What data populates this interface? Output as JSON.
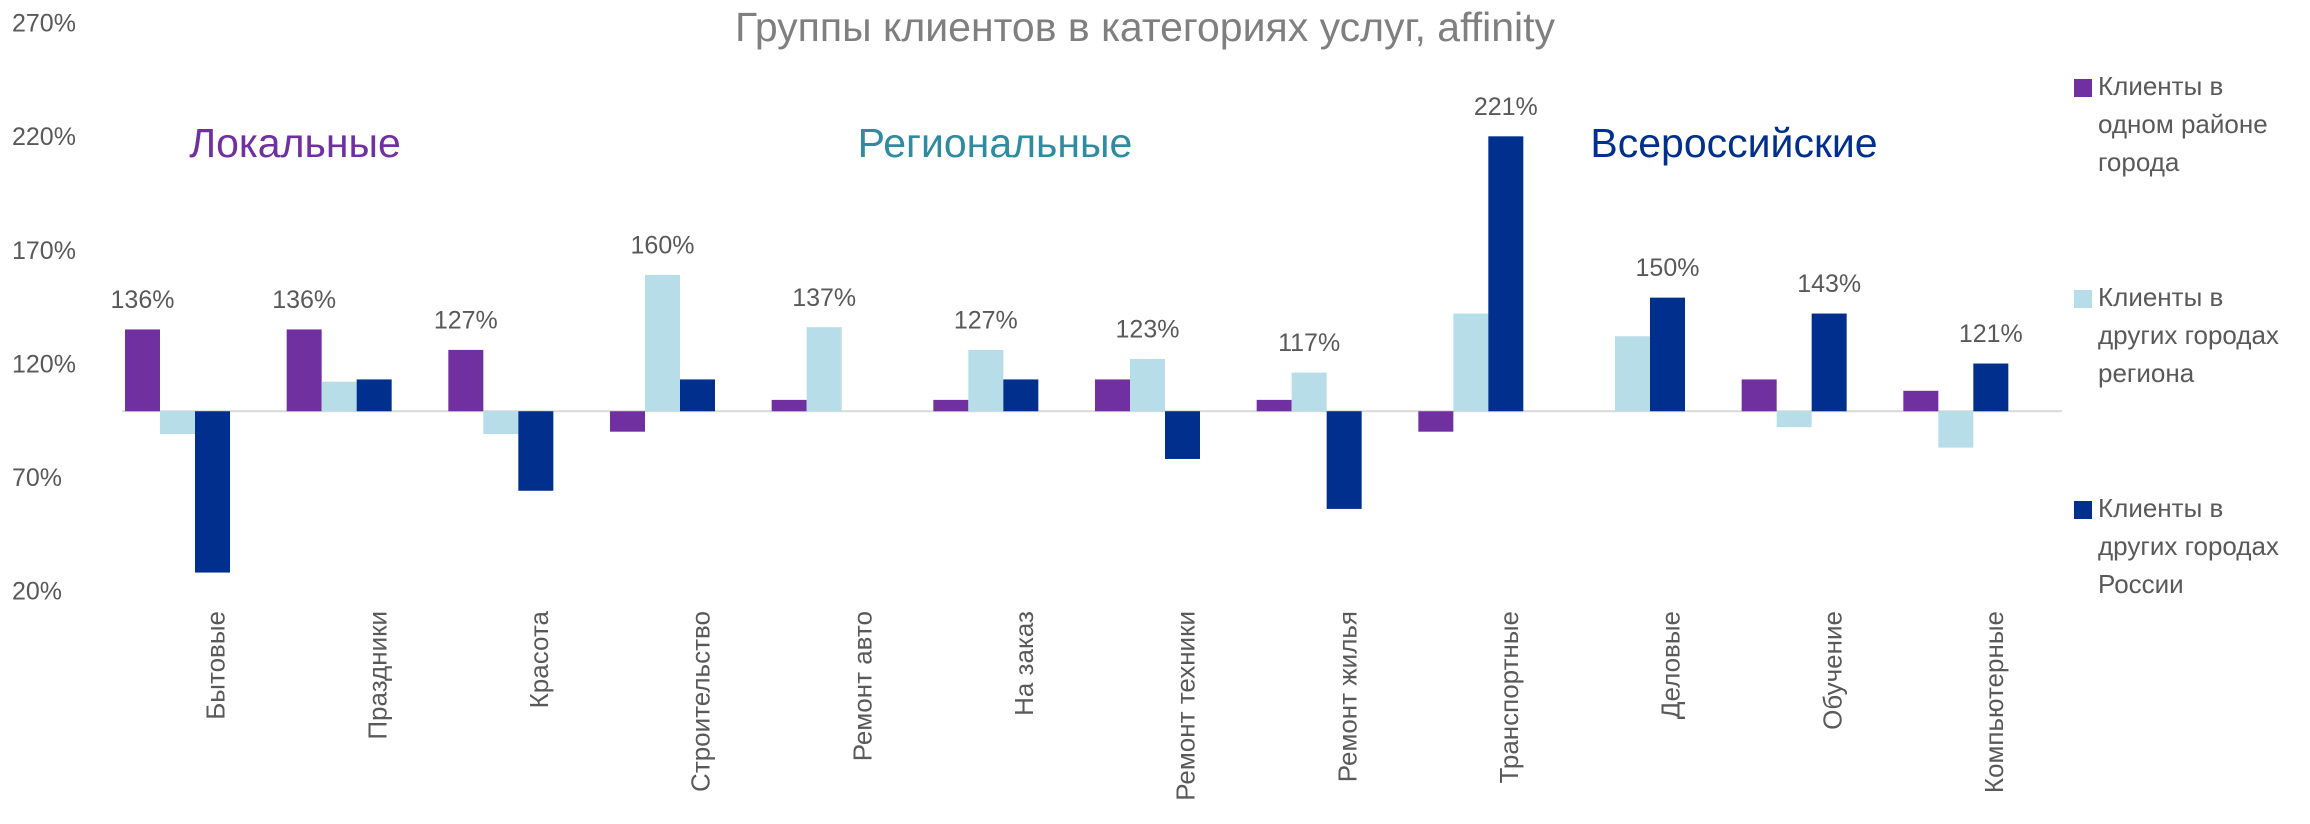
{
  "chart_data": {
    "type": "bar",
    "title": "Группы клиентов в категориях услуг, affinity",
    "categories": [
      "Бытовые",
      "Праздники",
      "Красота",
      "Строительство",
      "Ремонт авто",
      "На заказ",
      "Ремонт техники",
      "Ремонт жилья",
      "Транспортные",
      "Деловые",
      "Обучение",
      "Компьютерные"
    ],
    "baseline": 100,
    "series": [
      {
        "name": "Клиенты в одном районе города",
        "color": "#7030a0",
        "values": [
          136,
          136,
          127,
          91,
          105,
          105,
          114,
          105,
          91,
          100,
          114,
          109
        ],
        "value_labels": [
          "136%",
          "136%",
          "127%",
          null,
          null,
          null,
          null,
          null,
          null,
          null,
          null,
          null
        ]
      },
      {
        "name": "Клиенты в других городах региона",
        "color": "#b7dde8",
        "values": [
          90,
          113,
          90,
          160,
          137,
          127,
          123,
          117,
          143,
          133,
          93,
          84
        ],
        "value_labels": [
          null,
          null,
          null,
          "160%",
          "137%",
          "127%",
          "123%",
          "117%",
          null,
          null,
          null,
          null
        ]
      },
      {
        "name": "Клиенты в других городах России",
        "color": "#002f8e",
        "values": [
          29,
          114,
          65,
          114,
          100,
          114,
          79,
          57,
          221,
          150,
          143,
          121
        ],
        "value_labels": [
          null,
          null,
          null,
          null,
          null,
          null,
          null,
          null,
          "221%",
          "150%",
          "143%",
          "121%"
        ]
      }
    ],
    "annotations": [
      {
        "text": "Локальные",
        "color": "#7030a0"
      },
      {
        "text": "Региональные",
        "color": "#2e8ba0"
      },
      {
        "text": "Всероссийские",
        "color": "#002f8e"
      }
    ],
    "ylim": [
      20,
      270
    ],
    "yticks": [
      {
        "value": 20,
        "label": "20%"
      },
      {
        "value": 70,
        "label": "70%"
      },
      {
        "value": 120,
        "label": "120%"
      },
      {
        "value": 170,
        "label": "170%"
      },
      {
        "value": 220,
        "label": "220%"
      },
      {
        "value": 270,
        "label": "270%"
      }
    ],
    "legend": "right"
  }
}
